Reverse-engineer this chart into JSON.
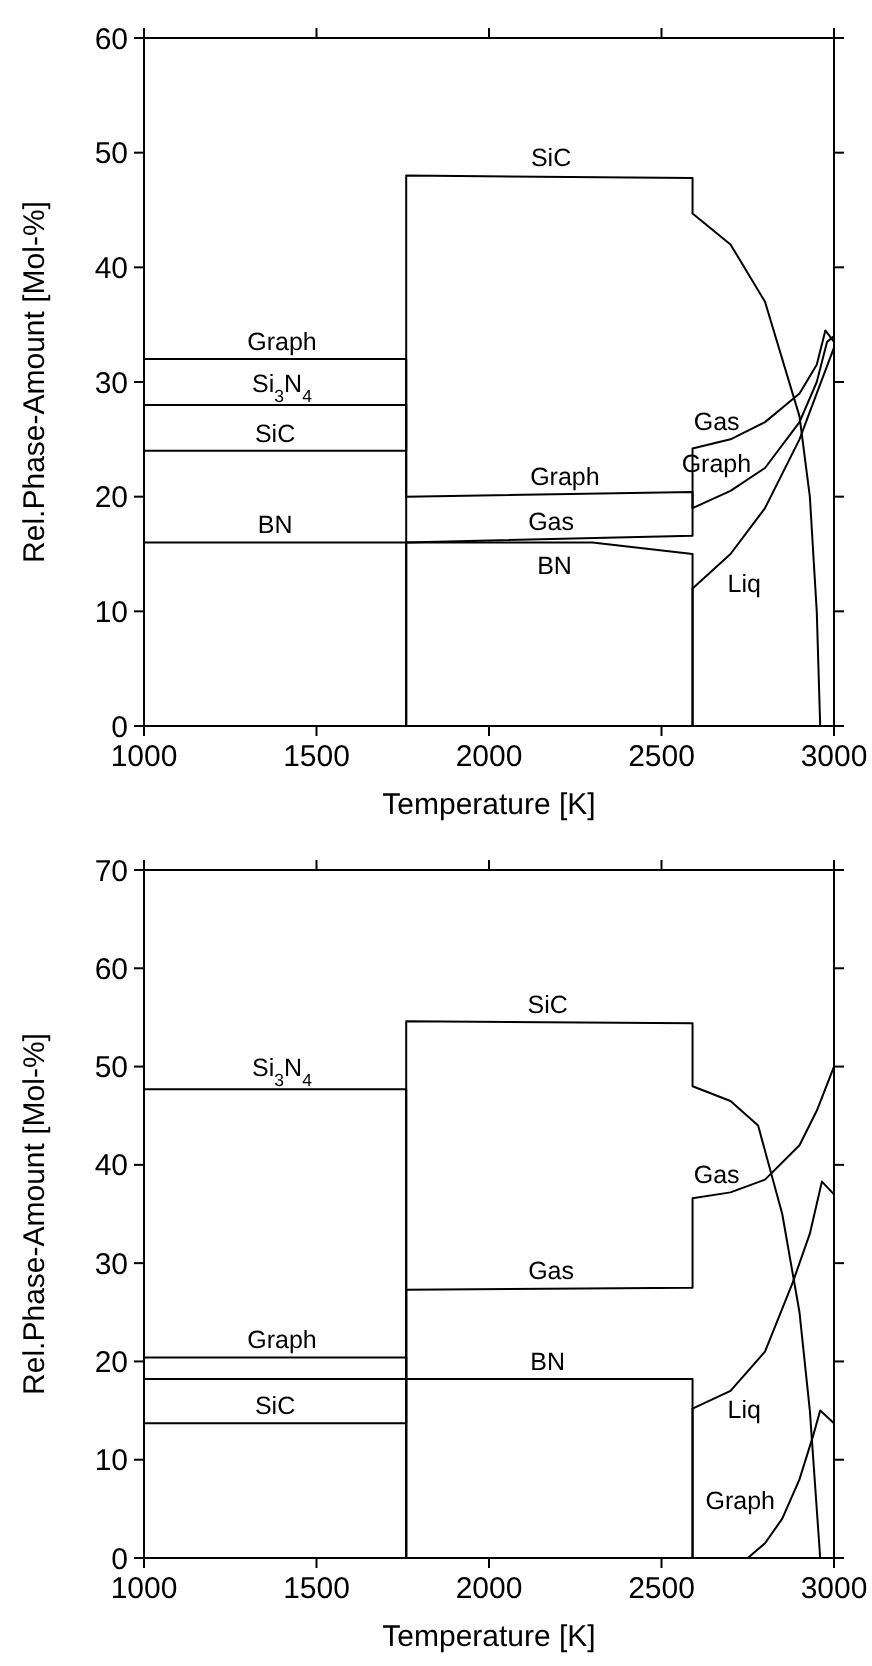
{
  "chart_data": [
    {
      "type": "line",
      "xlabel": "Temperature [K]",
      "ylabel": "Rel.Phase-Amount [Mol-%]",
      "xlim": [
        1000,
        3000
      ],
      "ylim": [
        0,
        60
      ],
      "xticks": [
        1000,
        1500,
        2000,
        2500,
        3000
      ],
      "yticks": [
        0,
        10,
        20,
        30,
        40,
        50,
        60
      ],
      "grid": false,
      "series": [
        {
          "color": "#000000",
          "x": [
            1000,
            1760,
            1760,
            2590,
            2590,
            2700,
            2800,
            2900,
            2950,
            2980,
            3000
          ],
          "values": [
            32,
            32,
            20,
            20.4,
            19,
            20.5,
            22.5,
            26.5,
            30,
            33.5,
            34
          ]
        },
        {
          "color": "#000000",
          "x": [
            1000,
            1760,
            1760
          ],
          "values": [
            28,
            28,
            0
          ]
        },
        {
          "color": "#000000",
          "x": [
            1000,
            1760,
            1760,
            2590,
            2590,
            2700,
            2800,
            2900,
            2930,
            2950,
            2960
          ],
          "values": [
            24,
            24,
            48,
            47.8,
            44.7,
            42,
            37,
            27,
            20,
            10,
            0
          ]
        },
        {
          "color": "#000000",
          "x": [
            1000,
            1760,
            2300,
            2590,
            2590
          ],
          "values": [
            16,
            16,
            16,
            15,
            0
          ]
        },
        {
          "color": "#000000",
          "x": [
            1760,
            1760,
            2590,
            2590,
            2700,
            2800,
            2900,
            2950,
            2975,
            3000
          ],
          "values": [
            0,
            16,
            16.6,
            24.2,
            25,
            26.5,
            29,
            31.5,
            34.5,
            33.5
          ]
        },
        {
          "color": "#000000",
          "x": [
            2590,
            2590,
            2700,
            2800,
            2900,
            2950,
            3000
          ],
          "values": [
            0,
            12,
            15,
            19,
            25,
            29,
            33
          ]
        }
      ],
      "annotations": [
        {
          "text": "Graph",
          "x": 1400,
          "y": 32
        },
        {
          "text": "Si$_{3}$N$_{4}$",
          "x": 1400,
          "y": 28
        },
        {
          "text": "SiC",
          "x": 1380,
          "y": 24
        },
        {
          "text": "BN",
          "x": 1380,
          "y": 16
        },
        {
          "text": "SiC",
          "x": 2180,
          "y": 48
        },
        {
          "text": "Graph",
          "x": 2220,
          "y": 20.2
        },
        {
          "text": "Gas",
          "x": 2180,
          "y": 16.3
        },
        {
          "text": "BN",
          "x": 2190,
          "y": 15.6
        },
        {
          "text": "Gas",
          "x": 2700,
          "y": 25
        },
        {
          "text": "Graph",
          "x": 2720,
          "y": 21
        },
        {
          "text": "Liq",
          "x": 2660,
          "y": 14
        }
      ]
    },
    {
      "type": "line",
      "xlabel": "Temperature [K]",
      "ylabel": "Rel.Phase-Amount [Mol-%]",
      "xlim": [
        1000,
        3000
      ],
      "ylim": [
        0,
        70
      ],
      "xticks": [
        1000,
        1500,
        2000,
        2500,
        3000
      ],
      "yticks": [
        0,
        10,
        20,
        30,
        40,
        50,
        60,
        70
      ],
      "grid": false,
      "series": [
        {
          "color": "#000000",
          "x": [
            1000,
            1760,
            1760
          ],
          "values": [
            47.7,
            47.7,
            0
          ]
        },
        {
          "color": "#000000",
          "x": [
            1000,
            1760,
            1760
          ],
          "values": [
            20.4,
            20.4,
            0
          ]
        },
        {
          "color": "#000000",
          "x": [
            2750,
            2800,
            2850,
            2900,
            2940,
            2960,
            3000
          ],
          "values": [
            0,
            1.5,
            4,
            8,
            12.5,
            15,
            13.7
          ]
        },
        {
          "color": "#000000",
          "x": [
            1000,
            1760,
            1760,
            2590,
            2590,
            2700,
            2780,
            2850,
            2900,
            2930,
            2960
          ],
          "values": [
            13.7,
            13.7,
            54.6,
            54.4,
            48,
            46.5,
            44,
            35,
            25,
            15,
            0
          ]
        },
        {
          "color": "#000000",
          "x": [
            1000,
            2590,
            2590
          ],
          "values": [
            18.2,
            18.2,
            0
          ]
        },
        {
          "color": "#000000",
          "x": [
            1760,
            1760,
            2590,
            2590,
            2700,
            2800,
            2900,
            2950,
            3000
          ],
          "values": [
            0,
            27.3,
            27.5,
            36.6,
            37.2,
            38.5,
            42,
            45.5,
            50
          ]
        },
        {
          "color": "#000000",
          "x": [
            2590,
            2590,
            2700,
            2800,
            2880,
            2930,
            2965,
            3000
          ],
          "values": [
            0,
            15.2,
            17,
            21,
            28,
            33,
            38.3,
            37
          ]
        }
      ],
      "annotations": [
        {
          "text": "Si$_{3}$N$_{4}$",
          "x": 1400,
          "y": 47.7
        },
        {
          "text": "Graph",
          "x": 1400,
          "y": 20.4
        },
        {
          "text": "SiC",
          "x": 1380,
          "y": 13.7
        },
        {
          "text": "SiC",
          "x": 2170,
          "y": 54.5
        },
        {
          "text": "Gas",
          "x": 2180,
          "y": 27.4
        },
        {
          "text": "BN",
          "x": 2170,
          "y": 18.2
        },
        {
          "text": "Gas",
          "x": 2700,
          "y": 37.2
        },
        {
          "text": "Liq",
          "x": 2700,
          "y": 17
        },
        {
          "text": "Graph",
          "x": 2850,
          "y": 4
        }
      ]
    }
  ]
}
